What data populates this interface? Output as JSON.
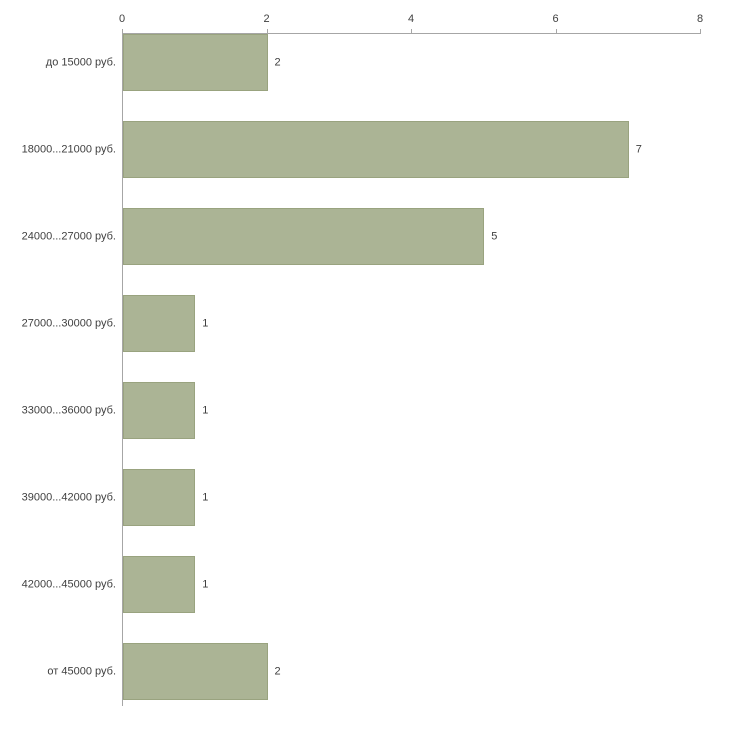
{
  "chart_data": {
    "type": "bar",
    "orientation": "horizontal",
    "title": "",
    "xlabel": "",
    "ylabel": "",
    "categories": [
      "до 15000 руб.",
      "18000...21000 руб.",
      "24000...27000 руб.",
      "27000...30000 руб.",
      "33000...36000 руб.",
      "39000...42000 руб.",
      "42000...45000 руб.",
      "от 45000 руб."
    ],
    "values": [
      2,
      7,
      5,
      1,
      1,
      1,
      1,
      2
    ],
    "x_ticks": [
      0,
      2,
      4,
      6,
      8
    ],
    "xlim": [
      0,
      8
    ],
    "grid": false,
    "legend": false,
    "value_labels_shown": true,
    "bar_color": "#abb495",
    "bar_border_color": "#99a37f",
    "axis_color": "#a6a6a6",
    "text_color": "#3f3f3f",
    "background_color": "#ffffff"
  }
}
